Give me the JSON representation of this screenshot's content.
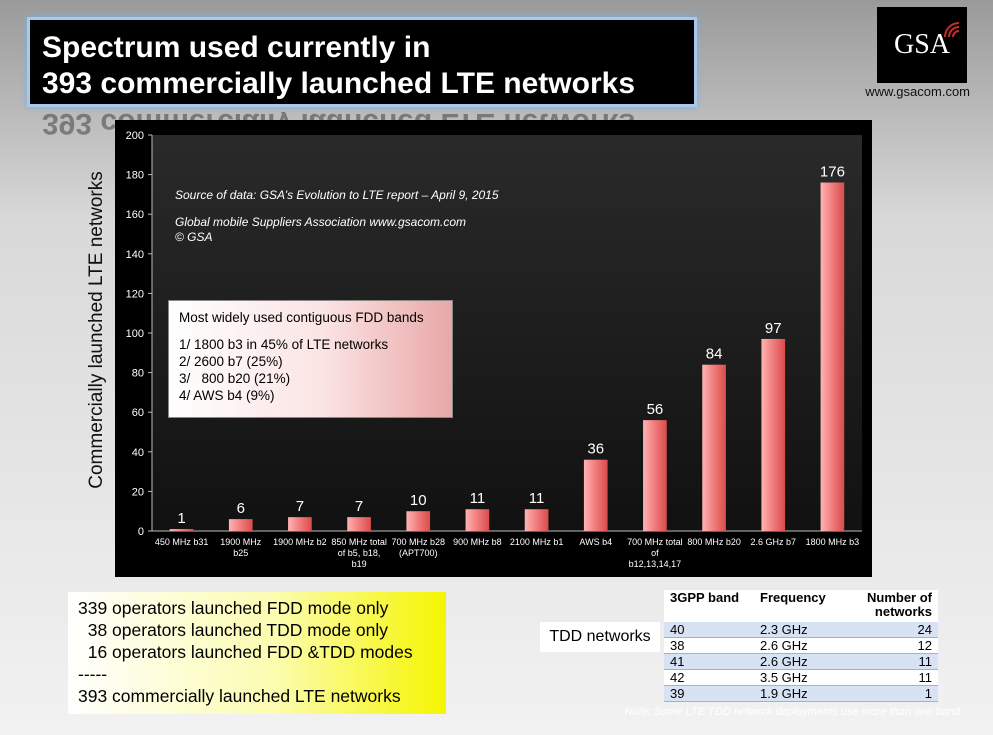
{
  "header": {
    "title_line1": "Spectrum used currently in",
    "title_line2": "393 commercially launched LTE networks",
    "logo_text": "GSA",
    "website": "www.gsacom.com"
  },
  "chart_data": {
    "type": "bar",
    "categories": [
      "450 MHz b31",
      "1900 MHz b25",
      "1900 MHz b2",
      "850 MHz total of b5, b18, b19",
      "700 MHz b28 (APT700)",
      "900 MHz b8",
      "2100 MHz b1",
      "AWS b4",
      "700 MHz total of b12,13,14,17",
      "800 MHz b20",
      "2.6 GHz b7",
      "1800 MHz b3"
    ],
    "category_lines": [
      [
        "450 MHz b31"
      ],
      [
        "1900 MHz",
        "b25"
      ],
      [
        "1900 MHz b2"
      ],
      [
        "850 MHz total",
        "of b5, b18,",
        "b19"
      ],
      [
        "700 MHz b28",
        "(APT700)"
      ],
      [
        "900 MHz b8"
      ],
      [
        "2100 MHz b1"
      ],
      [
        "AWS b4"
      ],
      [
        "700 MHz total",
        "of",
        "b12,13,14,17"
      ],
      [
        "800 MHz b20"
      ],
      [
        "2.6 GHz b7"
      ],
      [
        "1800 MHz b3"
      ]
    ],
    "values": [
      1,
      6,
      7,
      7,
      10,
      11,
      11,
      36,
      56,
      84,
      97,
      176
    ],
    "ylabel": "Commercially launched LTE networks",
    "xlabel": "",
    "ylim": [
      0,
      200
    ],
    "yticks": [
      0,
      20,
      40,
      60,
      80,
      100,
      120,
      140,
      160,
      180,
      200
    ],
    "grid": false,
    "bar_color": "#f07b7b"
  },
  "source_note": {
    "line1": "Source of data: GSA’s Evolution to LTE report – April 9, 2015",
    "line2": "Global mobile Suppliers Association www.gsacom.com",
    "line3": "© GSA"
  },
  "bands_box": {
    "heading": "Most widely used contiguous FDD bands",
    "items": [
      "1/ 1800 b3 in 45% of LTE networks",
      "2/ 2600 b7 (25%)",
      "3/   800 b20 (21%)",
      "4/ AWS b4 (9%)"
    ]
  },
  "operators_box": {
    "lines": [
      "339 operators launched FDD mode only",
      "  38 operators launched TDD mode only",
      "  16 operators launched FDD &TDD modes",
      "-----",
      "393 commercially launched LTE networks"
    ]
  },
  "tdd": {
    "label": "TDD networks",
    "headers": [
      "3GPP band",
      "Frequency",
      "Number of networks"
    ],
    "rows": [
      [
        "40",
        "2.3 GHz",
        "24"
      ],
      [
        "38",
        "2.6 GHz",
        "12"
      ],
      [
        "41",
        "2.6 GHz",
        "11"
      ],
      [
        "42",
        "3.5 GHz",
        "11"
      ],
      [
        "39",
        "1.9 GHz",
        "1"
      ]
    ],
    "note": "Note: Some LTE TDD network deployments use more than one band"
  }
}
